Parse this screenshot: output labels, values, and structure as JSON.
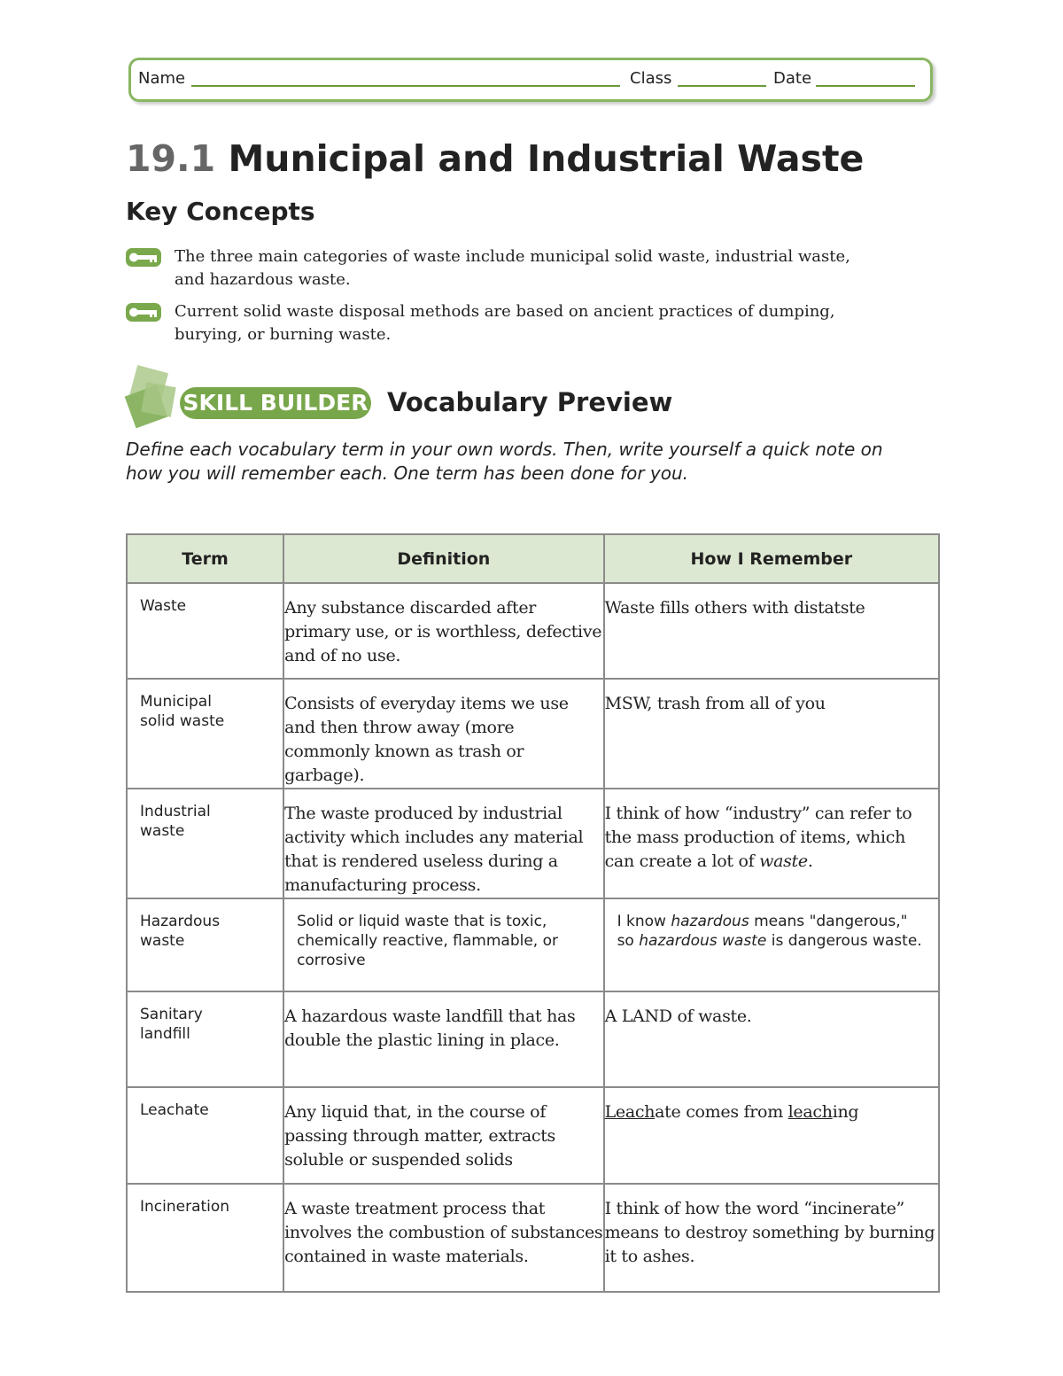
{
  "header": {
    "name_label": "Name",
    "class_label": "Class",
    "date_label": "Date"
  },
  "title": {
    "number": "19.1",
    "text": "Municipal and Industrial Waste"
  },
  "key_concepts": {
    "heading": "Key Concepts",
    "items": [
      "The three main categories of waste include municipal solid waste, industrial waste, and hazardous waste.",
      "Current solid waste disposal methods are based on ancient practices of dumping, burying, or burning waste."
    ]
  },
  "skill_builder": {
    "badge": "SKILL BUILDER",
    "heading": "Vocabulary Preview",
    "instructions": "Define each vocabulary term in your own words. Then, write yourself a quick note on how you will remember each. One term has been done for you."
  },
  "table": {
    "columns": [
      "Term",
      "Definition",
      "How I Remember"
    ],
    "rows": [
      [
        "Waste",
        "Any substance discarded after primary use, or is worthless, defective and of no use.",
        "Waste fills others with distatste"
      ],
      [
        "Municipal solid waste",
        "Consists of everyday items we use and then throw away (more commonly known as trash or garbage).",
        "MSW, trash from all of you"
      ],
      [
        "Industrial waste",
        "The waste produced by industrial activity which includes any material that is rendered useless during a manufacturing process.",
        [
          {
            "text": "I think of how “industry” can refer to the mass production of items, which can create a lot of "
          },
          {
            "text": "waste",
            "em": true
          },
          {
            "text": "."
          }
        ]
      ],
      [
        "Hazardous waste",
        "Solid or liquid waste that is toxic, chemically reactive, flammable, or corrosive",
        [
          {
            "text": "I know "
          },
          {
            "text": "hazardous",
            "em": true
          },
          {
            "text": " means \"dangerous,\" so "
          },
          {
            "text": "hazardous waste",
            "em": true
          },
          {
            "text": " is dangerous waste."
          }
        ]
      ],
      [
        "Sanitary landfill",
        "A hazardous waste landfill that has double the plastic lining in place.",
        "A LAND of waste."
      ],
      [
        "Leachate",
        "Any liquid that, in the course of passing through matter, extracts soluble or suspended solids",
        [
          {
            "text": "Leach",
            "u": true
          },
          {
            "text": "ate comes from "
          },
          {
            "text": "leach",
            "u": true
          },
          {
            "text": "ing"
          }
        ]
      ],
      [
        "Incineration",
        "A waste treatment process that involves the combustion of substances contained in waste materials.",
        "I think of how the word “incinerate” means to destroy something by burning it to ashes."
      ]
    ]
  }
}
